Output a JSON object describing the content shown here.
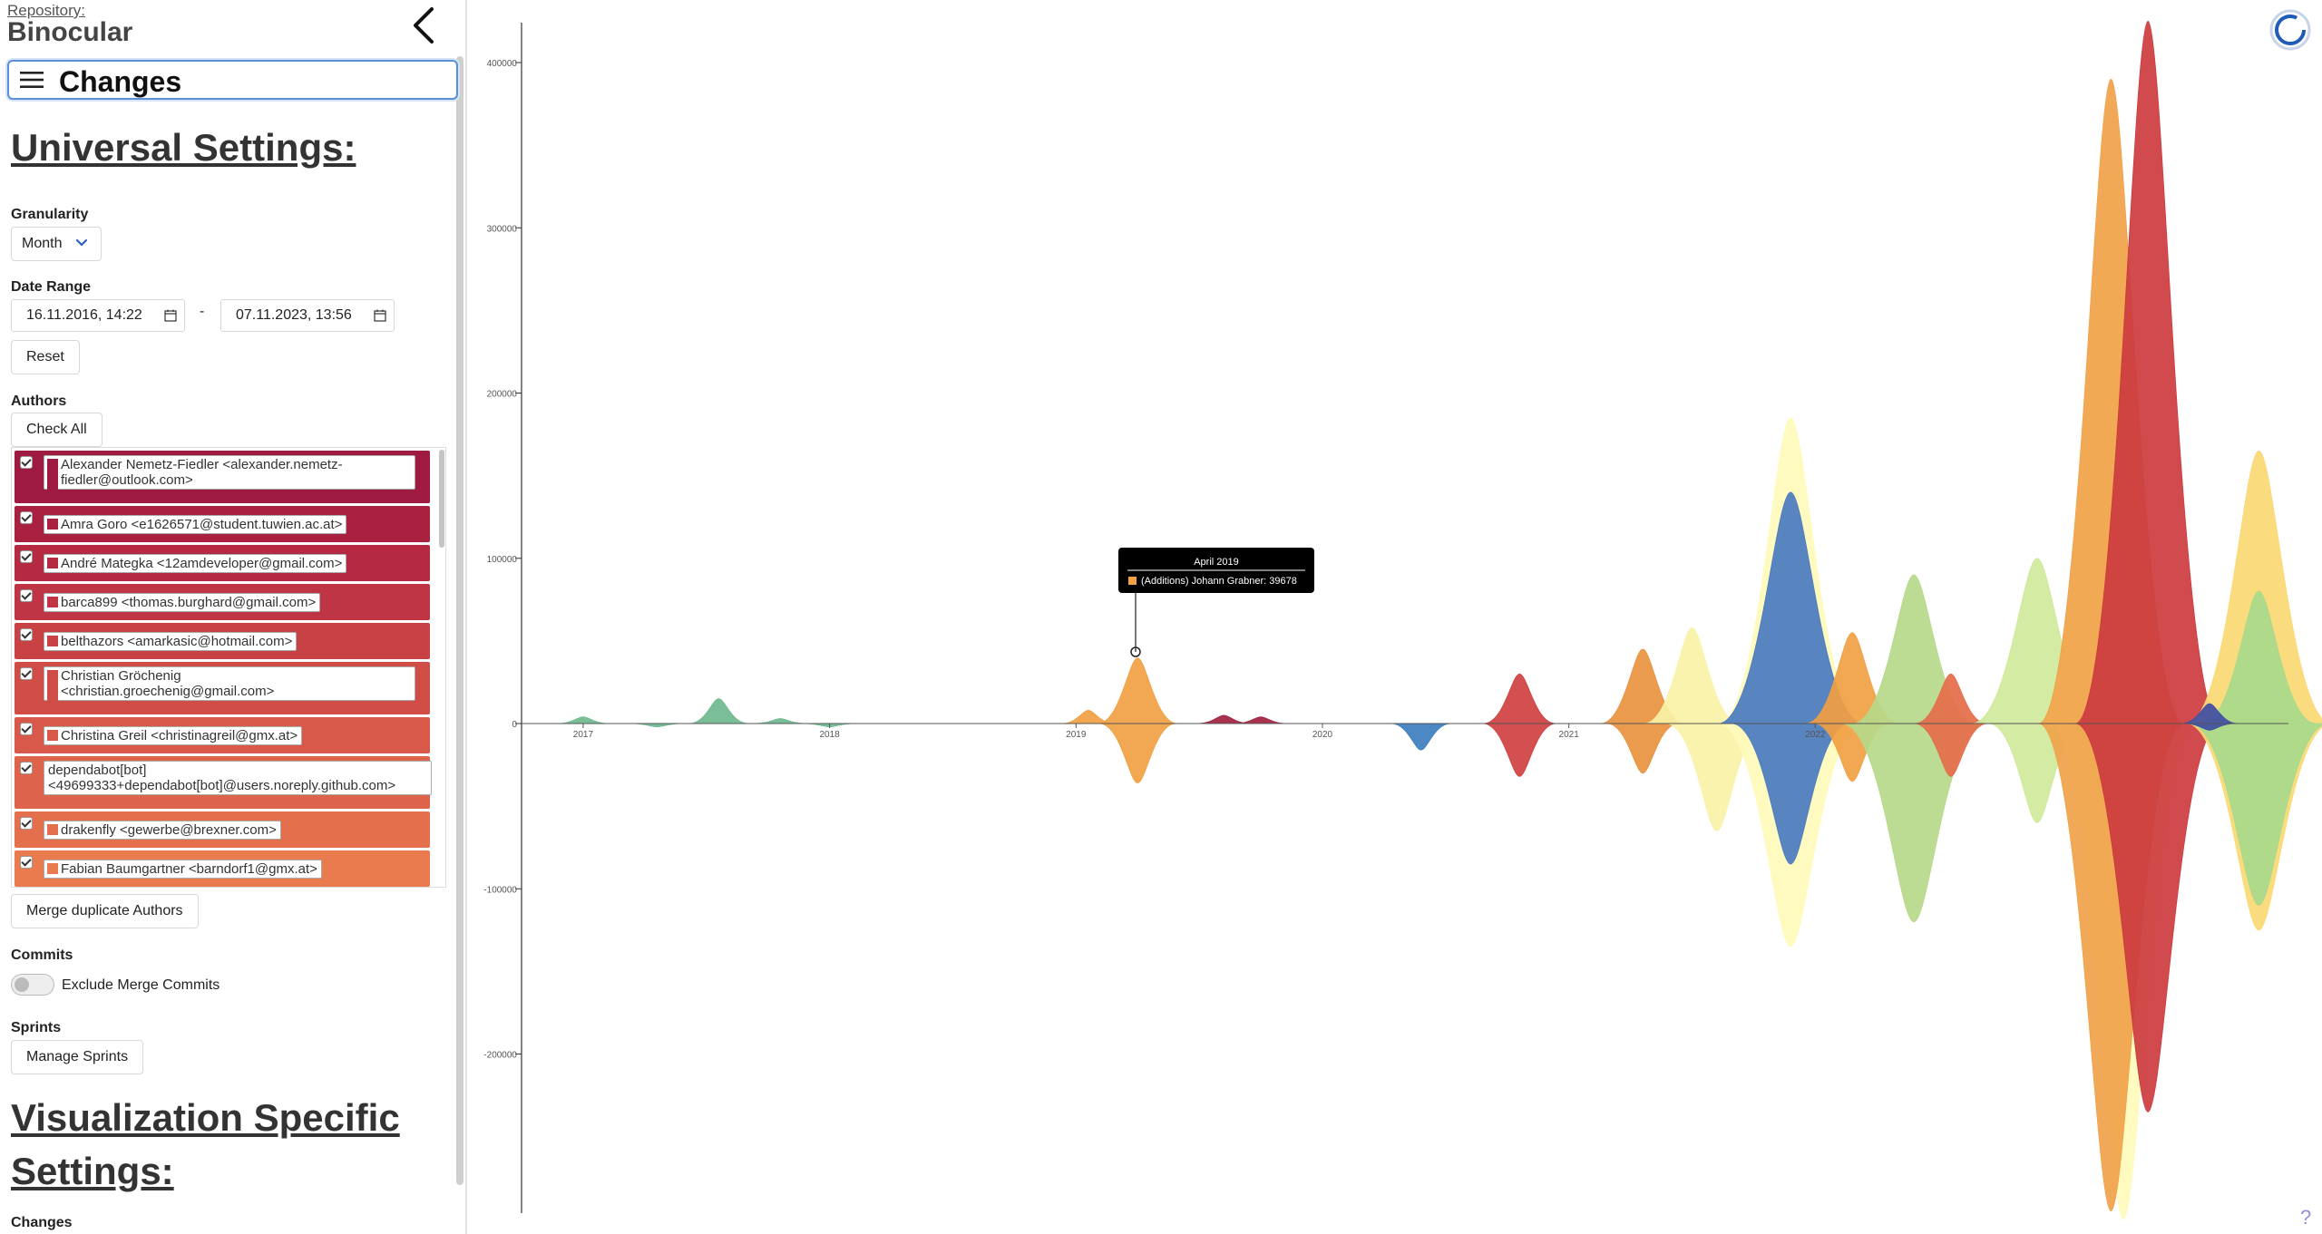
{
  "header": {
    "repo_label": "Repository:",
    "repo_name": "Binocular"
  },
  "nav": {
    "title": "Changes"
  },
  "universal": {
    "heading": "Universal Settings:",
    "granularity_label": "Granularity",
    "granularity_value": "Month",
    "date_range_label": "Date Range",
    "date_from": "16.11.2016, 14:22",
    "date_separator": "-",
    "date_to": "07.11.2023, 13:56",
    "reset_label": "Reset",
    "authors_label": "Authors",
    "check_all_label": "Check All",
    "authors": [
      {
        "line1": "Alexander Nemetz-Fiedler <alexander.nemetz-",
        "line2": "fiedler@outlook.com>",
        "color": "#9e1a41",
        "swatch": "#9e1a41",
        "checked": true
      },
      {
        "line1": "Amra Goro <e1626571@student.tuwien.ac.at>",
        "line2": "",
        "color": "#a92040",
        "swatch": "#a92040",
        "checked": true
      },
      {
        "line1": "André Mategka <12amdeveloper@gmail.com>",
        "line2": "",
        "color": "#b52a42",
        "swatch": "#b52a42",
        "checked": true
      },
      {
        "line1": "barca899 <thomas.burghard@gmail.com>",
        "line2": "",
        "color": "#bf3545",
        "swatch": "#bf3545",
        "checked": true
      },
      {
        "line1": "belthazors <amarkasic@hotmail.com>",
        "line2": "",
        "color": "#c84145",
        "swatch": "#c84145",
        "checked": true
      },
      {
        "line1": "Christian Gröchenig",
        "line2": "<christian.groechenig@gmail.com>",
        "color": "#d04d47",
        "swatch": "#d04d47",
        "checked": true
      },
      {
        "line1": "Christina Greil <christinagreil@gmx.at>",
        "line2": "",
        "color": "#d8584a",
        "swatch": "#d8584a",
        "checked": true
      },
      {
        "line1": "dependabot[bot]",
        "line2": "<49699333+dependabot[bot]@users.noreply.github.com>",
        "color": "#de634b",
        "swatch": "#de634b",
        "checked": true
      },
      {
        "line1": "drakenfly <gewerbe@brexner.com>",
        "line2": "",
        "color": "#e46f4c",
        "swatch": "#e46f4c",
        "checked": true
      },
      {
        "line1": "Fabian Baumgartner <barndorf1@gmx.at>",
        "line2": "",
        "color": "#ea7b4e",
        "swatch": "#ea7b4e",
        "checked": true
      }
    ],
    "merge_label": "Merge duplicate Authors",
    "commits_label": "Commits",
    "exclude_merge_label": "Exclude Merge Commits",
    "exclude_merge_on": false,
    "sprints_label": "Sprints",
    "manage_sprints_label": "Manage Sprints"
  },
  "viz": {
    "heading_line1": "Visualization Specific",
    "heading_line2": "Settings:",
    "changes_label": "Changes"
  },
  "tooltip": {
    "title": "April 2019",
    "entry": "(Additions) Johann Grabner: 39678",
    "swatch": "#f1a043"
  },
  "help_label": "?",
  "chart_data": {
    "type": "area",
    "x_ticks": [
      "2017",
      "2018",
      "2019",
      "2020",
      "2021",
      "2022"
    ],
    "y_ticks": [
      400000,
      300000,
      200000,
      100000,
      0,
      -100000,
      -200000
    ],
    "ylim": [
      -295000,
      425000
    ],
    "series": [
      {
        "color": "#6fb98f",
        "points": [
          [
            2017.0,
            4000
          ],
          [
            2017.3,
            -2000
          ],
          [
            2017.55,
            15000
          ],
          [
            2017.8,
            3000
          ],
          [
            2018.0,
            -2000
          ]
        ]
      },
      {
        "color": "#f1a043",
        "points": [
          [
            2019.05,
            8000
          ],
          [
            2019.25,
            39678
          ],
          [
            2019.25,
            -36000
          ]
        ]
      },
      {
        "color": "#a2223f",
        "points": [
          [
            2019.6,
            5000
          ],
          [
            2019.75,
            4000
          ]
        ]
      },
      {
        "color": "#3d7fbf",
        "points": [
          [
            2020.4,
            -16000
          ]
        ]
      },
      {
        "color": "#d04040",
        "points": [
          [
            2020.8,
            30000
          ],
          [
            2020.8,
            -32000
          ]
        ]
      },
      {
        "color": "#e8923e",
        "points": [
          [
            2021.3,
            45000
          ],
          [
            2021.3,
            -30000
          ]
        ]
      },
      {
        "color": "#f9f2a6",
        "points": [
          [
            2021.5,
            58000
          ],
          [
            2021.6,
            -65000
          ]
        ]
      },
      {
        "color": "#fffbbb",
        "points": [
          [
            2021.9,
            185000
          ],
          [
            2021.9,
            -135000
          ]
        ]
      },
      {
        "color": "#4a79bf",
        "points": [
          [
            2021.9,
            140000
          ],
          [
            2021.9,
            -85000
          ]
        ]
      },
      {
        "color": "#f1a043",
        "points": [
          [
            2022.15,
            55000
          ],
          [
            2022.15,
            -35000
          ]
        ]
      },
      {
        "color": "#b6d98a",
        "points": [
          [
            2022.4,
            90000
          ],
          [
            2022.4,
            -120000
          ]
        ]
      },
      {
        "color": "#e46c4a",
        "points": [
          [
            2022.55,
            30000
          ],
          [
            2022.55,
            -32000
          ]
        ]
      },
      {
        "color": "#cfe99a",
        "points": [
          [
            2022.9,
            100000
          ],
          [
            2022.9,
            -60000
          ]
        ]
      },
      {
        "color": "#4da3c8",
        "points": [
          [
            2023.2,
            45000
          ],
          [
            2023.2,
            -60000
          ]
        ]
      },
      {
        "color": "#fffbbb",
        "points": [
          [
            2023.2,
            330000
          ],
          [
            2023.25,
            -300000
          ]
        ]
      },
      {
        "color": "#f0a24a",
        "points": [
          [
            2023.2,
            390000
          ],
          [
            2023.2,
            -295000
          ]
        ]
      },
      {
        "color": "#cc3b3f",
        "points": [
          [
            2023.35,
            425000
          ],
          [
            2023.35,
            -235000
          ]
        ]
      },
      {
        "color": "#fad974",
        "points": [
          [
            2023.8,
            165000
          ],
          [
            2023.8,
            -125000
          ]
        ]
      },
      {
        "color": "#a8d98a",
        "points": [
          [
            2023.8,
            80000
          ],
          [
            2023.8,
            -110000
          ]
        ]
      },
      {
        "color": "#3f4ea3",
        "points": [
          [
            2023.6,
            12000
          ],
          [
            2023.6,
            -4000
          ]
        ]
      }
    ]
  }
}
